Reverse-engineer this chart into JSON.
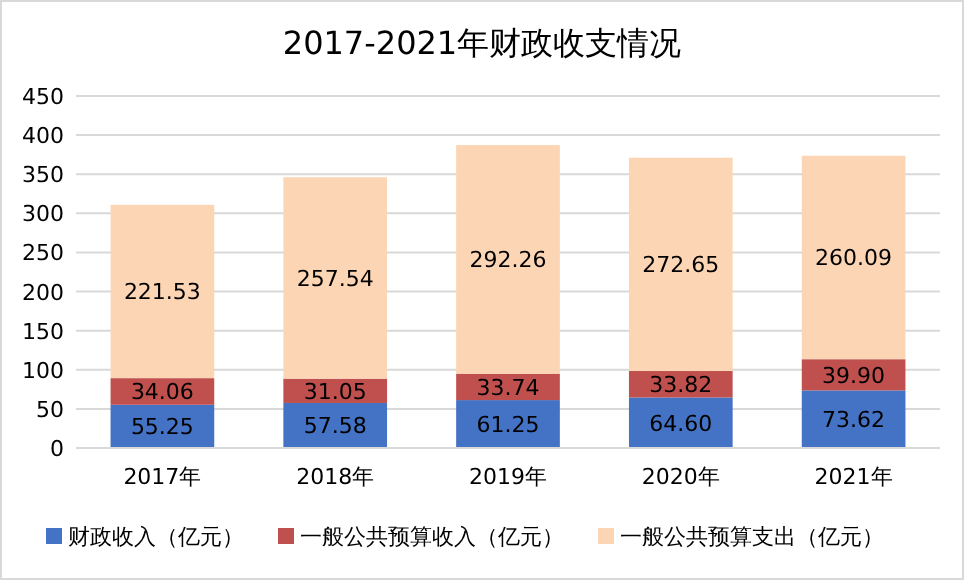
{
  "chart_data": {
    "type": "bar",
    "title": "2017-2021年财政收支情况",
    "stacked": true,
    "categories": [
      "2017年",
      "2018年",
      "2019年",
      "2020年",
      "2021年"
    ],
    "series": [
      {
        "name": "财政收入（亿元）",
        "color": "#4472c4",
        "values": [
          55.25,
          57.58,
          61.25,
          64.6,
          73.62
        ],
        "value_labels": [
          "55.25",
          "57.58",
          "61.25",
          "64.60",
          "73.62"
        ]
      },
      {
        "name": "一般公共预算收入（亿元）",
        "color": "#c0504d",
        "values": [
          34.06,
          31.05,
          33.74,
          33.82,
          39.9
        ],
        "value_labels": [
          "34.06",
          "31.05",
          "33.74",
          "33.82",
          "39.90"
        ]
      },
      {
        "name": "一般公共预算支出（亿元）",
        "color": "#fcd5b5",
        "values": [
          221.53,
          257.54,
          292.26,
          272.65,
          260.09
        ],
        "value_labels": [
          "221.53",
          "257.54",
          "292.26",
          "272.65",
          "260.09"
        ]
      }
    ],
    "ylim": [
      0,
      450
    ],
    "yticks": [
      0,
      50,
      100,
      150,
      200,
      250,
      300,
      350,
      400,
      450
    ],
    "grid": "y",
    "legend": "bottom"
  }
}
